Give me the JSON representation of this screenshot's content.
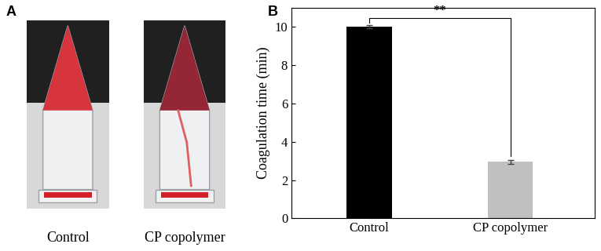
{
  "panel_a": {
    "label": "A",
    "tubes": [
      "Control",
      "CP copolymer"
    ]
  },
  "chart_data": {
    "panel_label": "B",
    "type": "bar",
    "categories": [
      "Control",
      "CP copolymer"
    ],
    "values": [
      10.0,
      2.95
    ],
    "errors": [
      0.1,
      0.1
    ],
    "colors": [
      "#000000",
      "#c0c0c0"
    ],
    "ylabel": "Coagulation time (min)",
    "ylim": [
      0,
      11
    ],
    "yticks": [
      0,
      2,
      4,
      6,
      8,
      10
    ],
    "annotations": [
      {
        "text": "**",
        "between": [
          "Control",
          "CP copolymer"
        ]
      }
    ]
  }
}
